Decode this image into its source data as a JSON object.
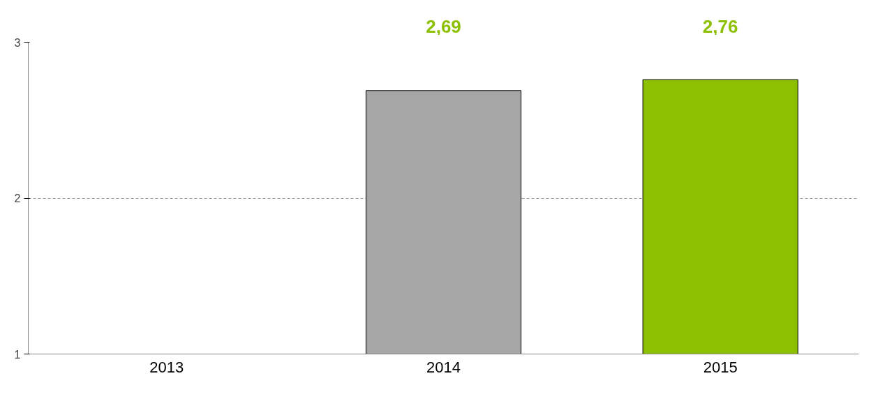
{
  "chart_data": {
    "type": "bar",
    "categories": [
      "2013",
      "2014",
      "2015"
    ],
    "values": [
      null,
      2.69,
      2.76
    ],
    "colors": [
      "#a0a0a0",
      "#a6a6a6",
      "#8cc000"
    ],
    "value_labels": [
      null,
      "2,69",
      "2,76"
    ],
    "ylim": [
      1,
      3
    ],
    "yticks": [
      1,
      2,
      3
    ],
    "grid": "y"
  }
}
